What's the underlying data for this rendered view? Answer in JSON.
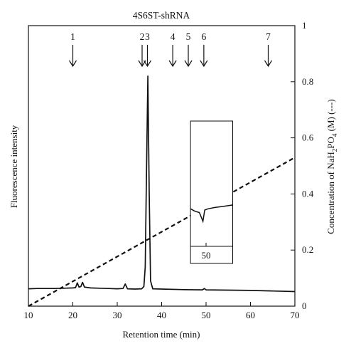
{
  "chart_data": {
    "type": "line",
    "title": "4S6ST-shRNA",
    "xlabel": "Retention time (min)",
    "ylabel_left": "Fluorescence intensity",
    "ylabel_right": {
      "prefix": "Concentration of NaH",
      "sub1": "2",
      "mid": "PO",
      "sub2": "4",
      "suffix": " (M) (---)"
    },
    "xlim": [
      10,
      70
    ],
    "right_ylim": [
      0,
      1
    ],
    "x_ticks": [
      "10",
      "20",
      "30",
      "40",
      "50",
      "60",
      "70"
    ],
    "right_y_ticks": [
      "0",
      "0.2",
      "0.4",
      "0.6",
      "0.8",
      "1"
    ],
    "peak_markers": [
      {
        "label": "1",
        "x": 20.0
      },
      {
        "label": "2",
        "x": 35.6
      },
      {
        "label": "3",
        "x": 36.8
      },
      {
        "label": "4",
        "x": 42.5
      },
      {
        "label": "5",
        "x": 46.0
      },
      {
        "label": "6",
        "x": 49.5
      },
      {
        "label": "7",
        "x": 64.0
      }
    ],
    "inset": {
      "tick_label": "50",
      "tick_x": 50,
      "x_range": [
        46.5,
        56
      ],
      "trace": [
        [
          46.5,
          0.3
        ],
        [
          47.5,
          0.28
        ],
        [
          48.5,
          0.27
        ],
        [
          49.3,
          0.2
        ],
        [
          49.7,
          0.29
        ],
        [
          50.5,
          0.3
        ],
        [
          52,
          0.31
        ],
        [
          54,
          0.32
        ],
        [
          56,
          0.33
        ]
      ]
    },
    "series": [
      {
        "style": "solid",
        "points": [
          [
            10,
            0.062
          ],
          [
            12,
            0.063
          ],
          [
            14,
            0.063
          ],
          [
            16,
            0.063
          ],
          [
            18,
            0.064
          ],
          [
            20,
            0.065
          ],
          [
            20.6,
            0.066
          ],
          [
            21.0,
            0.083
          ],
          [
            21.4,
            0.068
          ],
          [
            21.8,
            0.07
          ],
          [
            22.2,
            0.085
          ],
          [
            22.6,
            0.068
          ],
          [
            24,
            0.065
          ],
          [
            26,
            0.064
          ],
          [
            28,
            0.063
          ],
          [
            30,
            0.062
          ],
          [
            31.3,
            0.063
          ],
          [
            31.8,
            0.079
          ],
          [
            32.3,
            0.062
          ],
          [
            34,
            0.061
          ],
          [
            35.5,
            0.062
          ],
          [
            36.0,
            0.07
          ],
          [
            36.3,
            0.14
          ],
          [
            36.6,
            0.5
          ],
          [
            36.9,
            0.82
          ],
          [
            37.2,
            0.4
          ],
          [
            37.5,
            0.09
          ],
          [
            38,
            0.062
          ],
          [
            40,
            0.061
          ],
          [
            45,
            0.059
          ],
          [
            49.2,
            0.058
          ],
          [
            49.6,
            0.063
          ],
          [
            50,
            0.058
          ],
          [
            55,
            0.057
          ],
          [
            60,
            0.056
          ],
          [
            65,
            0.054
          ],
          [
            70,
            0.052
          ]
        ]
      },
      {
        "style": "dashed",
        "axis": "right",
        "points": [
          [
            10,
            0.0
          ],
          [
            70,
            0.53
          ]
        ]
      }
    ]
  }
}
